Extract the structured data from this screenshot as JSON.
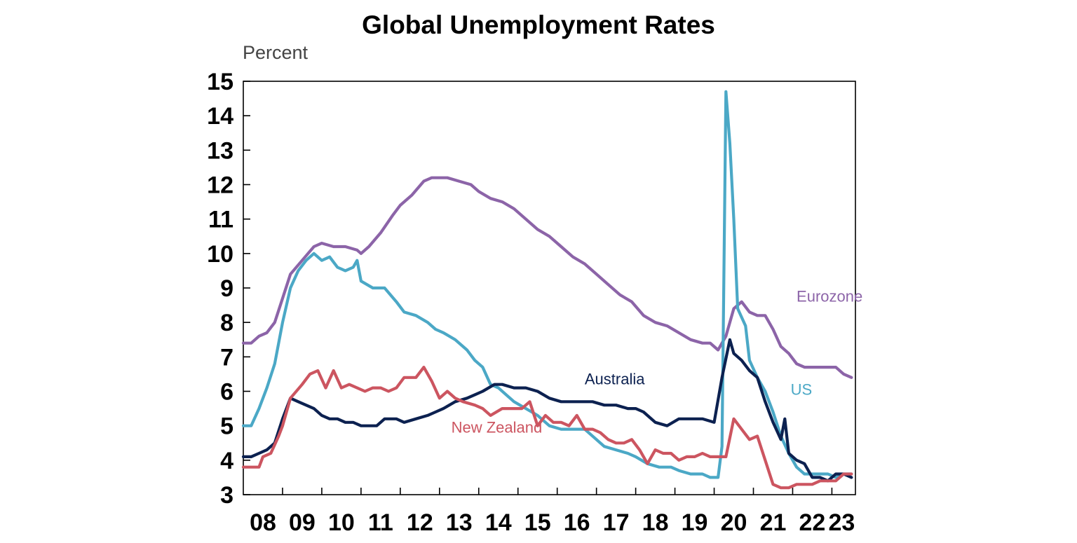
{
  "chart_data": {
    "type": "line",
    "title": "Global Unemployment Rates",
    "ylabel": "Percent",
    "xlabel": "",
    "ylim": [
      3,
      15
    ],
    "yticks": [
      3,
      4,
      5,
      6,
      7,
      8,
      9,
      10,
      11,
      12,
      13,
      14,
      15
    ],
    "xlim": [
      2008.0,
      2023.6
    ],
    "xtick_labels": [
      "08",
      "09",
      "10",
      "11",
      "12",
      "13",
      "14",
      "15",
      "16",
      "17",
      "18",
      "19",
      "20",
      "21",
      "22",
      "23"
    ],
    "xtick_years": [
      2008,
      2009,
      2010,
      2011,
      2012,
      2013,
      2014,
      2015,
      2016,
      2017,
      2018,
      2019,
      2020,
      2021,
      2022,
      2023
    ],
    "grid": false,
    "legend": "inline labels",
    "series": [
      {
        "name": "Eurozone",
        "color": "#8c64a8",
        "points": [
          [
            2008.0,
            7.4
          ],
          [
            2008.2,
            7.4
          ],
          [
            2008.4,
            7.6
          ],
          [
            2008.6,
            7.7
          ],
          [
            2008.8,
            8.0
          ],
          [
            2009.0,
            8.7
          ],
          [
            2009.2,
            9.4
          ],
          [
            2009.5,
            9.8
          ],
          [
            2009.8,
            10.2
          ],
          [
            2010.0,
            10.3
          ],
          [
            2010.3,
            10.2
          ],
          [
            2010.6,
            10.2
          ],
          [
            2010.9,
            10.1
          ],
          [
            2011.0,
            10.0
          ],
          [
            2011.2,
            10.2
          ],
          [
            2011.5,
            10.6
          ],
          [
            2011.8,
            11.1
          ],
          [
            2012.0,
            11.4
          ],
          [
            2012.3,
            11.7
          ],
          [
            2012.6,
            12.1
          ],
          [
            2012.8,
            12.2
          ],
          [
            2013.2,
            12.2
          ],
          [
            2013.5,
            12.1
          ],
          [
            2013.8,
            12.0
          ],
          [
            2014.0,
            11.8
          ],
          [
            2014.3,
            11.6
          ],
          [
            2014.6,
            11.5
          ],
          [
            2014.9,
            11.3
          ],
          [
            2015.2,
            11.0
          ],
          [
            2015.5,
            10.7
          ],
          [
            2015.8,
            10.5
          ],
          [
            2016.1,
            10.2
          ],
          [
            2016.4,
            9.9
          ],
          [
            2016.7,
            9.7
          ],
          [
            2017.0,
            9.4
          ],
          [
            2017.3,
            9.1
          ],
          [
            2017.6,
            8.8
          ],
          [
            2017.9,
            8.6
          ],
          [
            2018.2,
            8.2
          ],
          [
            2018.5,
            8.0
          ],
          [
            2018.8,
            7.9
          ],
          [
            2019.1,
            7.7
          ],
          [
            2019.4,
            7.5
          ],
          [
            2019.7,
            7.4
          ],
          [
            2019.9,
            7.4
          ],
          [
            2020.1,
            7.2
          ],
          [
            2020.3,
            7.6
          ],
          [
            2020.5,
            8.4
          ],
          [
            2020.7,
            8.6
          ],
          [
            2020.9,
            8.3
          ],
          [
            2021.1,
            8.2
          ],
          [
            2021.3,
            8.2
          ],
          [
            2021.5,
            7.8
          ],
          [
            2021.7,
            7.3
          ],
          [
            2021.9,
            7.1
          ],
          [
            2022.1,
            6.8
          ],
          [
            2022.3,
            6.7
          ],
          [
            2022.6,
            6.7
          ],
          [
            2022.9,
            6.7
          ],
          [
            2023.1,
            6.7
          ],
          [
            2023.3,
            6.5
          ],
          [
            2023.5,
            6.4
          ]
        ]
      },
      {
        "name": "US",
        "color": "#4ba8c6",
        "points": [
          [
            2008.0,
            5.0
          ],
          [
            2008.2,
            5.0
          ],
          [
            2008.4,
            5.5
          ],
          [
            2008.6,
            6.1
          ],
          [
            2008.8,
            6.8
          ],
          [
            2009.0,
            8.0
          ],
          [
            2009.2,
            9.0
          ],
          [
            2009.4,
            9.5
          ],
          [
            2009.6,
            9.8
          ],
          [
            2009.8,
            10.0
          ],
          [
            2010.0,
            9.8
          ],
          [
            2010.2,
            9.9
          ],
          [
            2010.4,
            9.6
          ],
          [
            2010.6,
            9.5
          ],
          [
            2010.8,
            9.6
          ],
          [
            2010.9,
            9.8
          ],
          [
            2011.0,
            9.2
          ],
          [
            2011.3,
            9.0
          ],
          [
            2011.6,
            9.0
          ],
          [
            2011.9,
            8.6
          ],
          [
            2012.1,
            8.3
          ],
          [
            2012.4,
            8.2
          ],
          [
            2012.7,
            8.0
          ],
          [
            2012.9,
            7.8
          ],
          [
            2013.1,
            7.7
          ],
          [
            2013.4,
            7.5
          ],
          [
            2013.7,
            7.2
          ],
          [
            2013.9,
            6.9
          ],
          [
            2014.1,
            6.7
          ],
          [
            2014.3,
            6.2
          ],
          [
            2014.5,
            6.1
          ],
          [
            2014.7,
            5.9
          ],
          [
            2014.9,
            5.7
          ],
          [
            2015.2,
            5.5
          ],
          [
            2015.5,
            5.3
          ],
          [
            2015.8,
            5.0
          ],
          [
            2016.1,
            4.9
          ],
          [
            2016.4,
            4.9
          ],
          [
            2016.7,
            4.9
          ],
          [
            2016.9,
            4.7
          ],
          [
            2017.2,
            4.4
          ],
          [
            2017.5,
            4.3
          ],
          [
            2017.8,
            4.2
          ],
          [
            2018.0,
            4.1
          ],
          [
            2018.3,
            3.9
          ],
          [
            2018.6,
            3.8
          ],
          [
            2018.9,
            3.8
          ],
          [
            2019.1,
            3.7
          ],
          [
            2019.4,
            3.6
          ],
          [
            2019.7,
            3.6
          ],
          [
            2019.9,
            3.5
          ],
          [
            2020.1,
            3.5
          ],
          [
            2020.2,
            4.4
          ],
          [
            2020.3,
            14.7
          ],
          [
            2020.4,
            13.2
          ],
          [
            2020.5,
            11.0
          ],
          [
            2020.6,
            8.4
          ],
          [
            2020.8,
            7.9
          ],
          [
            2020.9,
            6.9
          ],
          [
            2021.1,
            6.4
          ],
          [
            2021.3,
            6.0
          ],
          [
            2021.5,
            5.4
          ],
          [
            2021.7,
            4.7
          ],
          [
            2021.9,
            4.2
          ],
          [
            2022.1,
            3.8
          ],
          [
            2022.3,
            3.6
          ],
          [
            2022.6,
            3.6
          ],
          [
            2022.9,
            3.6
          ],
          [
            2023.1,
            3.5
          ],
          [
            2023.3,
            3.6
          ],
          [
            2023.5,
            3.6
          ]
        ]
      },
      {
        "name": "Australia",
        "color": "#0c2150",
        "points": [
          [
            2008.0,
            4.1
          ],
          [
            2008.2,
            4.1
          ],
          [
            2008.4,
            4.2
          ],
          [
            2008.6,
            4.3
          ],
          [
            2008.8,
            4.5
          ],
          [
            2009.0,
            5.2
          ],
          [
            2009.2,
            5.8
          ],
          [
            2009.4,
            5.7
          ],
          [
            2009.6,
            5.6
          ],
          [
            2009.8,
            5.5
          ],
          [
            2010.0,
            5.3
          ],
          [
            2010.2,
            5.2
          ],
          [
            2010.4,
            5.2
          ],
          [
            2010.6,
            5.1
          ],
          [
            2010.8,
            5.1
          ],
          [
            2011.0,
            5.0
          ],
          [
            2011.2,
            5.0
          ],
          [
            2011.4,
            5.0
          ],
          [
            2011.6,
            5.2
          ],
          [
            2011.9,
            5.2
          ],
          [
            2012.1,
            5.1
          ],
          [
            2012.4,
            5.2
          ],
          [
            2012.7,
            5.3
          ],
          [
            2012.9,
            5.4
          ],
          [
            2013.1,
            5.5
          ],
          [
            2013.4,
            5.7
          ],
          [
            2013.7,
            5.8
          ],
          [
            2013.9,
            5.9
          ],
          [
            2014.1,
            6.0
          ],
          [
            2014.4,
            6.2
          ],
          [
            2014.6,
            6.2
          ],
          [
            2014.9,
            6.1
          ],
          [
            2015.2,
            6.1
          ],
          [
            2015.5,
            6.0
          ],
          [
            2015.8,
            5.8
          ],
          [
            2016.1,
            5.7
          ],
          [
            2016.4,
            5.7
          ],
          [
            2016.7,
            5.7
          ],
          [
            2016.9,
            5.7
          ],
          [
            2017.2,
            5.6
          ],
          [
            2017.5,
            5.6
          ],
          [
            2017.8,
            5.5
          ],
          [
            2018.0,
            5.5
          ],
          [
            2018.2,
            5.4
          ],
          [
            2018.5,
            5.1
          ],
          [
            2018.8,
            5.0
          ],
          [
            2019.1,
            5.2
          ],
          [
            2019.4,
            5.2
          ],
          [
            2019.7,
            5.2
          ],
          [
            2020.0,
            5.1
          ],
          [
            2020.2,
            6.4
          ],
          [
            2020.4,
            7.5
          ],
          [
            2020.5,
            7.1
          ],
          [
            2020.7,
            6.9
          ],
          [
            2020.9,
            6.6
          ],
          [
            2021.1,
            6.4
          ],
          [
            2021.3,
            5.7
          ],
          [
            2021.5,
            5.1
          ],
          [
            2021.7,
            4.6
          ],
          [
            2021.8,
            5.2
          ],
          [
            2021.9,
            4.2
          ],
          [
            2022.1,
            4.0
          ],
          [
            2022.3,
            3.9
          ],
          [
            2022.5,
            3.5
          ],
          [
            2022.7,
            3.5
          ],
          [
            2022.9,
            3.4
          ],
          [
            2023.1,
            3.6
          ],
          [
            2023.3,
            3.6
          ],
          [
            2023.5,
            3.5
          ]
        ]
      },
      {
        "name": "New Zealand",
        "color": "#cc5560",
        "points": [
          [
            2008.0,
            3.8
          ],
          [
            2008.2,
            3.8
          ],
          [
            2008.4,
            3.8
          ],
          [
            2008.5,
            4.1
          ],
          [
            2008.7,
            4.2
          ],
          [
            2008.9,
            4.7
          ],
          [
            2009.0,
            5.0
          ],
          [
            2009.2,
            5.8
          ],
          [
            2009.5,
            6.2
          ],
          [
            2009.7,
            6.5
          ],
          [
            2009.9,
            6.6
          ],
          [
            2010.1,
            6.1
          ],
          [
            2010.3,
            6.6
          ],
          [
            2010.5,
            6.1
          ],
          [
            2010.7,
            6.2
          ],
          [
            2010.9,
            6.1
          ],
          [
            2011.1,
            6.0
          ],
          [
            2011.3,
            6.1
          ],
          [
            2011.5,
            6.1
          ],
          [
            2011.7,
            6.0
          ],
          [
            2011.9,
            6.1
          ],
          [
            2012.1,
            6.4
          ],
          [
            2012.4,
            6.4
          ],
          [
            2012.6,
            6.7
          ],
          [
            2012.8,
            6.3
          ],
          [
            2013.0,
            5.8
          ],
          [
            2013.2,
            6.0
          ],
          [
            2013.4,
            5.8
          ],
          [
            2013.6,
            5.7
          ],
          [
            2013.9,
            5.6
          ],
          [
            2014.1,
            5.5
          ],
          [
            2014.3,
            5.3
          ],
          [
            2014.6,
            5.5
          ],
          [
            2014.9,
            5.5
          ],
          [
            2015.1,
            5.5
          ],
          [
            2015.3,
            5.7
          ],
          [
            2015.5,
            5.0
          ],
          [
            2015.7,
            5.3
          ],
          [
            2015.9,
            5.1
          ],
          [
            2016.1,
            5.1
          ],
          [
            2016.3,
            5.0
          ],
          [
            2016.5,
            5.3
          ],
          [
            2016.7,
            4.9
          ],
          [
            2016.9,
            4.9
          ],
          [
            2017.1,
            4.8
          ],
          [
            2017.3,
            4.6
          ],
          [
            2017.5,
            4.5
          ],
          [
            2017.7,
            4.5
          ],
          [
            2017.9,
            4.6
          ],
          [
            2018.1,
            4.3
          ],
          [
            2018.3,
            3.9
          ],
          [
            2018.5,
            4.3
          ],
          [
            2018.7,
            4.2
          ],
          [
            2018.9,
            4.2
          ],
          [
            2019.1,
            4.0
          ],
          [
            2019.3,
            4.1
          ],
          [
            2019.5,
            4.1
          ],
          [
            2019.7,
            4.2
          ],
          [
            2019.9,
            4.1
          ],
          [
            2020.1,
            4.1
          ],
          [
            2020.3,
            4.1
          ],
          [
            2020.5,
            5.2
          ],
          [
            2020.7,
            4.9
          ],
          [
            2020.9,
            4.6
          ],
          [
            2021.1,
            4.7
          ],
          [
            2021.3,
            4.0
          ],
          [
            2021.5,
            3.3
          ],
          [
            2021.7,
            3.2
          ],
          [
            2021.9,
            3.2
          ],
          [
            2022.1,
            3.3
          ],
          [
            2022.3,
            3.3
          ],
          [
            2022.5,
            3.3
          ],
          [
            2022.7,
            3.4
          ],
          [
            2022.9,
            3.4
          ],
          [
            2023.1,
            3.4
          ],
          [
            2023.3,
            3.6
          ],
          [
            2023.5,
            3.6
          ]
        ]
      }
    ],
    "annotations": [
      {
        "series": "Eurozone",
        "text": "Eurozone",
        "at": [
          2022.1,
          8.6
        ]
      },
      {
        "series": "US",
        "text": "US",
        "at": [
          2021.95,
          5.9
        ]
      },
      {
        "series": "Australia",
        "text": "Australia",
        "at": [
          2016.7,
          6.2
        ]
      },
      {
        "series": "New Zealand",
        "text": "New Zealand",
        "at": [
          2013.3,
          4.8
        ]
      }
    ]
  }
}
